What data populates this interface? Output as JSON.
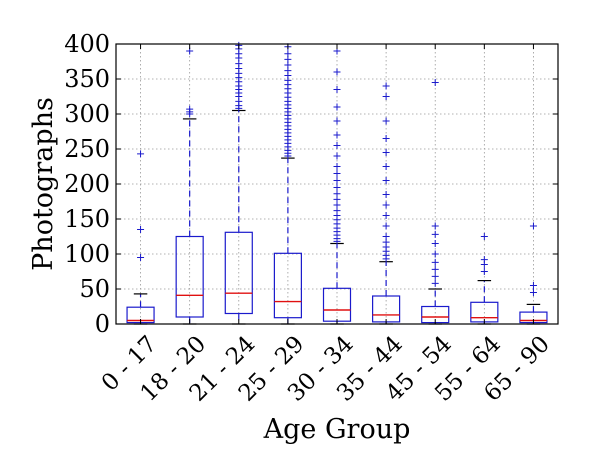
{
  "chart_data": {
    "type": "box",
    "xlabel": "Age Group",
    "ylabel": "Photographs",
    "ylim": [
      0,
      400
    ],
    "yticks": [
      0,
      50,
      100,
      150,
      200,
      250,
      300,
      350,
      400
    ],
    "grid": true,
    "colors": {
      "box": "#1a1acc",
      "median": "#e01010",
      "grid": "#999999"
    },
    "categories": [
      "0 - 17",
      "18 - 20",
      "21 - 24",
      "25 - 29",
      "30 - 34",
      "35 - 44",
      "45 - 54",
      "55 - 64",
      "65 - 90"
    ],
    "boxes": [
      {
        "q1": 2,
        "median": 5,
        "q3": 24,
        "whisker_low": 0,
        "whisker_high": 43,
        "outliers": [
          95,
          135,
          243
        ]
      },
      {
        "q1": 10,
        "median": 41,
        "q3": 125,
        "whisker_low": 0,
        "whisker_high": 293,
        "outliers": [
          300,
          303,
          307,
          390
        ]
      },
      {
        "q1": 15,
        "median": 44,
        "q3": 131,
        "whisker_low": 0,
        "whisker_high": 305,
        "outliers": [
          308,
          312,
          318,
          325,
          330,
          335,
          340,
          346,
          352,
          358,
          365,
          372,
          380,
          386,
          393,
          398
        ]
      },
      {
        "q1": 9,
        "median": 32,
        "q3": 101,
        "whisker_low": 0,
        "whisker_high": 237,
        "outliers": [
          240,
          244,
          248,
          253,
          258,
          263,
          268,
          273,
          278,
          283,
          288,
          293,
          298,
          303,
          308,
          313,
          318,
          324,
          330,
          336,
          342,
          348,
          355,
          362,
          370,
          378,
          386,
          396
        ]
      },
      {
        "q1": 4,
        "median": 20,
        "q3": 51,
        "whisker_low": 0,
        "whisker_high": 115,
        "outliers": [
          118,
          122,
          127,
          132,
          137,
          143,
          149,
          155,
          162,
          170,
          178,
          186,
          195,
          205,
          215,
          225,
          240,
          255,
          270,
          290,
          310,
          335,
          360,
          390
        ]
      },
      {
        "q1": 3,
        "median": 13,
        "q3": 40,
        "whisker_low": 0,
        "whisker_high": 89,
        "outliers": [
          93,
          98,
          104,
          110,
          117,
          125,
          140,
          155,
          170,
          185,
          205,
          225,
          245,
          265,
          290,
          325,
          340
        ]
      },
      {
        "q1": 2,
        "median": 10,
        "q3": 25,
        "whisker_low": 0,
        "whisker_high": 50,
        "outliers": [
          58,
          68,
          78,
          88,
          100,
          115,
          128,
          140,
          345
        ]
      },
      {
        "q1": 3,
        "median": 9,
        "q3": 31,
        "whisker_low": 0,
        "whisker_high": 62,
        "outliers": [
          75,
          85,
          92,
          125
        ]
      },
      {
        "q1": 2,
        "median": 5,
        "q3": 17,
        "whisker_low": 0,
        "whisker_high": 28,
        "outliers": [
          45,
          55,
          140
        ]
      }
    ]
  }
}
